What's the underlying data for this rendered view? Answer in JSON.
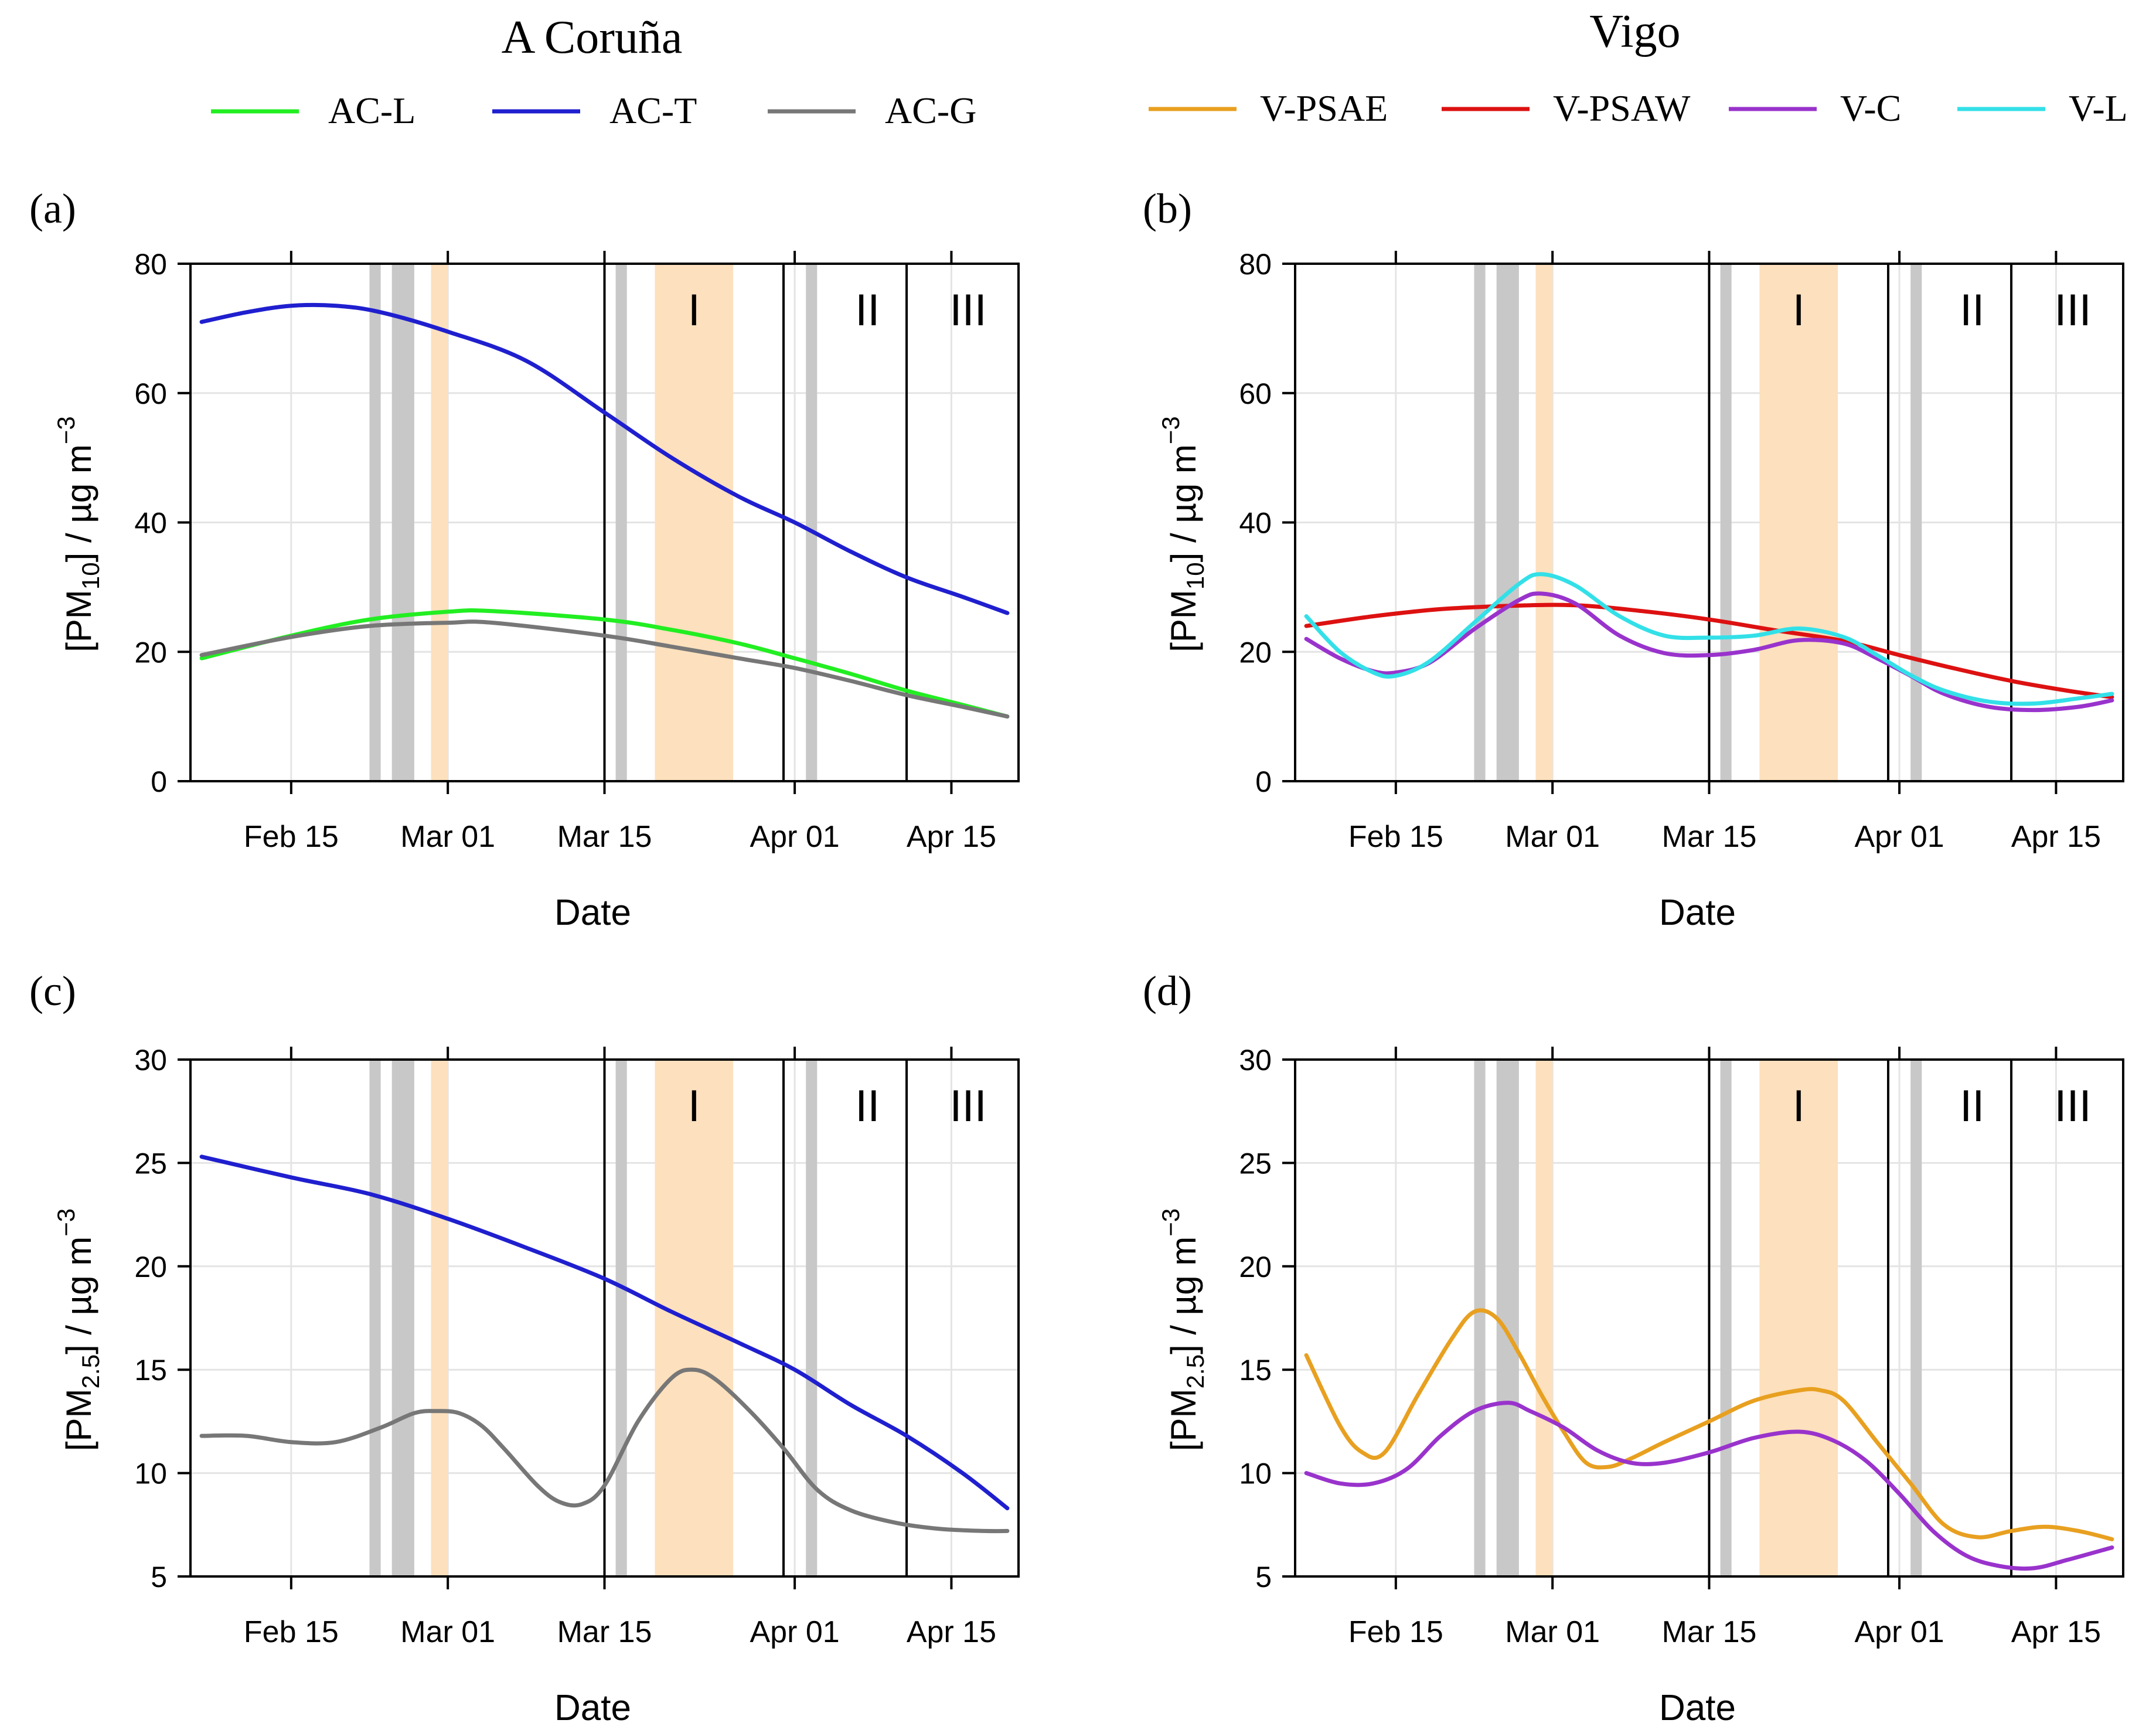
{
  "legend": {
    "left": {
      "title": "A Coruña",
      "entries": [
        {
          "label": "AC-L",
          "color": "#22ee22"
        },
        {
          "label": "AC-T",
          "color": "#1f1fcf"
        },
        {
          "label": "AC-G",
          "color": "#777777"
        }
      ]
    },
    "right": {
      "title": "Vigo",
      "entries": [
        {
          "label": "V-PSAE",
          "color": "#e8a020"
        },
        {
          "label": "V-PSAW",
          "color": "#dd1111"
        },
        {
          "label": "V-C",
          "color": "#9933cc"
        },
        {
          "label": "V-L",
          "color": "#33e0e8"
        }
      ]
    }
  },
  "chart_data": [
    {
      "type": "line",
      "panel": "(a)",
      "xlabel": "Date",
      "ylabel": "[PM10] / µg m-3",
      "ylabel_parts": {
        "main": "[PM",
        "sub": "10",
        "tail": "] / µg m",
        "sup": "−3"
      },
      "ylim": [
        0,
        80
      ],
      "yticks": [
        0,
        20,
        40,
        60,
        80
      ],
      "xlim_day": [
        37,
        111
      ],
      "xticks": [
        {
          "day": 46,
          "label": "Feb 15"
        },
        {
          "day": 60,
          "label": "Mar 01"
        },
        {
          "day": 74,
          "label": "Mar 15"
        },
        {
          "day": 91,
          "label": "Apr 01"
        },
        {
          "day": 105,
          "label": "Apr 15"
        }
      ],
      "x_unit": "day of year",
      "gray_bands": [
        [
          53,
          54
        ],
        [
          55,
          57
        ]
      ],
      "orange_bands": [
        [
          58.5,
          60
        ]
      ],
      "event_bands": {
        "gray": [
          [
            75,
            76
          ],
          [
            92,
            93
          ]
        ],
        "orange": [
          [
            78.5,
            85.5
          ]
        ]
      },
      "vlines": [
        74,
        90,
        101
      ],
      "periods": [
        {
          "label": "I",
          "day": 82
        },
        {
          "label": "II",
          "day": 97.5
        },
        {
          "label": "III",
          "day": 106.5
        }
      ],
      "series": [
        {
          "name": "AC-L",
          "color": "#22ee22",
          "x": [
            38,
            46,
            53,
            60,
            64,
            74,
            80,
            86,
            91,
            96,
            101,
            106,
            110
          ],
          "y": [
            19,
            22.5,
            25,
            26.2,
            26.3,
            25,
            23.4,
            21.3,
            19,
            16.6,
            14,
            11.8,
            10
          ]
        },
        {
          "name": "AC-T",
          "color": "#1f1fcf",
          "x": [
            38,
            42,
            46,
            50,
            54,
            60,
            67,
            74,
            80,
            86,
            91,
            96,
            101,
            106,
            110
          ],
          "y": [
            71,
            72.5,
            73.5,
            73.5,
            72.5,
            69.5,
            65,
            57,
            50,
            44,
            40,
            35.5,
            31.5,
            28.5,
            26
          ]
        },
        {
          "name": "AC-G",
          "color": "#777777",
          "x": [
            38,
            46,
            53,
            60,
            64,
            74,
            80,
            86,
            91,
            96,
            101,
            106,
            110
          ],
          "y": [
            19.5,
            22.3,
            24,
            24.5,
            24.5,
            22.5,
            20.8,
            19,
            17.5,
            15.5,
            13.3,
            11.5,
            10
          ]
        }
      ]
    },
    {
      "type": "line",
      "panel": "(b)",
      "xlabel": "Date",
      "ylabel": "[PM10] / µg m-3",
      "ylabel_parts": {
        "main": "[PM",
        "sub": "10",
        "tail": "] / µg m",
        "sup": "−3"
      },
      "ylim": [
        0,
        80
      ],
      "yticks": [
        0,
        20,
        40,
        60,
        80
      ],
      "xlim_day": [
        37,
        111
      ],
      "xticks": [
        {
          "day": 46,
          "label": "Feb 15"
        },
        {
          "day": 60,
          "label": "Mar 01"
        },
        {
          "day": 74,
          "label": "Mar 15"
        },
        {
          "day": 91,
          "label": "Apr 01"
        },
        {
          "day": 105,
          "label": "Apr 15"
        }
      ],
      "x_unit": "day of year",
      "gray_bands": [
        [
          53,
          54
        ],
        [
          55,
          57
        ]
      ],
      "orange_bands": [
        [
          58.5,
          60
        ]
      ],
      "event_bands": {
        "gray": [
          [
            75,
            76
          ],
          [
            92,
            93
          ]
        ],
        "orange": [
          [
            78.5,
            85.5
          ]
        ]
      },
      "vlines": [
        74,
        90,
        101
      ],
      "periods": [
        {
          "label": "I",
          "day": 82
        },
        {
          "label": "II",
          "day": 97.5
        },
        {
          "label": "III",
          "day": 106.5
        }
      ],
      "series": [
        {
          "name": "V-PSAW",
          "color": "#dd1111",
          "x": [
            38,
            44,
            50,
            56,
            62,
            68,
            74,
            80,
            86,
            91,
            96,
            101,
            106,
            110
          ],
          "y": [
            24,
            25.5,
            26.6,
            27.1,
            27.2,
            26.3,
            25,
            23.3,
            21.7,
            19.5,
            17.4,
            15.5,
            14,
            13
          ]
        },
        {
          "name": "V-C",
          "color": "#9933cc",
          "x": [
            38,
            41,
            44,
            46,
            49,
            53,
            57,
            59,
            62,
            66,
            70,
            74,
            78,
            82,
            86,
            89,
            92,
            95,
            99,
            103,
            107,
            110
          ],
          "y": [
            22,
            19,
            17,
            16.8,
            18.3,
            23.5,
            28,
            29,
            27.5,
            22.5,
            19.8,
            19.5,
            20.3,
            21.8,
            21.3,
            19,
            16.3,
            13.5,
            11.5,
            11,
            11.5,
            12.5
          ]
        },
        {
          "name": "V-L",
          "color": "#33e0e8",
          "x": [
            38,
            41,
            44,
            46,
            49,
            53,
            57,
            59,
            62,
            66,
            70,
            74,
            78,
            82,
            86,
            89,
            92,
            95,
            99,
            103,
            107,
            110
          ],
          "y": [
            25.5,
            20,
            16.8,
            16.3,
            18.5,
            24.5,
            30.5,
            32,
            30.3,
            25.5,
            22.5,
            22.2,
            22.5,
            23.6,
            22.3,
            19.5,
            16.4,
            14,
            12.3,
            12,
            12.8,
            13.5
          ]
        }
      ]
    },
    {
      "type": "line",
      "panel": "(c)",
      "xlabel": "Date",
      "ylabel": "[PM2.5] / µg m-3",
      "ylabel_parts": {
        "main": "[PM",
        "sub": "2.5",
        "tail": "] / µg m",
        "sup": "−3"
      },
      "ylim": [
        5,
        30
      ],
      "yticks": [
        5,
        10,
        15,
        20,
        25,
        30
      ],
      "xlim_day": [
        37,
        111
      ],
      "xticks": [
        {
          "day": 46,
          "label": "Feb 15"
        },
        {
          "day": 60,
          "label": "Mar 01"
        },
        {
          "day": 74,
          "label": "Mar 15"
        },
        {
          "day": 91,
          "label": "Apr 01"
        },
        {
          "day": 105,
          "label": "Apr 15"
        }
      ],
      "x_unit": "day of year",
      "gray_bands": [
        [
          53,
          54
        ],
        [
          55,
          57
        ]
      ],
      "orange_bands": [
        [
          58.5,
          60
        ]
      ],
      "event_bands": {
        "gray": [
          [
            75,
            76
          ],
          [
            92,
            93
          ]
        ],
        "orange": [
          [
            78.5,
            85.5
          ]
        ]
      },
      "vlines": [
        74,
        90,
        101
      ],
      "periods": [
        {
          "label": "I",
          "day": 82
        },
        {
          "label": "II",
          "day": 97.5
        },
        {
          "label": "III",
          "day": 106.5
        }
      ],
      "series": [
        {
          "name": "AC-T",
          "color": "#1f1fcf",
          "x": [
            38,
            46,
            53,
            60,
            67,
            74,
            80,
            86,
            91,
            96,
            101,
            106,
            110
          ],
          "y": [
            25.3,
            24.3,
            23.5,
            22.3,
            20.9,
            19.4,
            17.8,
            16.3,
            15,
            13.3,
            11.8,
            10,
            8.3
          ]
        },
        {
          "name": "AC-G",
          "color": "#777777",
          "x": [
            38,
            42,
            46,
            50,
            54,
            57,
            59,
            61,
            63,
            65,
            68,
            70,
            72,
            74,
            77,
            80,
            82,
            84,
            87,
            90,
            93,
            96,
            100,
            104,
            108,
            110
          ],
          "y": [
            11.8,
            11.8,
            11.5,
            11.5,
            12.2,
            12.9,
            13,
            12.9,
            12.3,
            11.2,
            9.4,
            8.6,
            8.5,
            9.4,
            12.5,
            14.6,
            15,
            14.5,
            13,
            11.2,
            9.2,
            8.2,
            7.6,
            7.3,
            7.2,
            7.2
          ]
        }
      ]
    },
    {
      "type": "line",
      "panel": "(d)",
      "xlabel": "Date",
      "ylabel": "[PM2.5] / µg m-3",
      "ylabel_parts": {
        "main": "[PM",
        "sub": "2.5",
        "tail": "] / µg m",
        "sup": "−3"
      },
      "ylim": [
        5,
        30
      ],
      "yticks": [
        5,
        10,
        15,
        20,
        25,
        30
      ],
      "xlim_day": [
        37,
        111
      ],
      "xticks": [
        {
          "day": 46,
          "label": "Feb 15"
        },
        {
          "day": 60,
          "label": "Mar 01"
        },
        {
          "day": 74,
          "label": "Mar 15"
        },
        {
          "day": 91,
          "label": "Apr 01"
        },
        {
          "day": 105,
          "label": "Apr 15"
        }
      ],
      "x_unit": "day of year",
      "gray_bands": [
        [
          53,
          54
        ],
        [
          55,
          57
        ]
      ],
      "orange_bands": [
        [
          58.5,
          60
        ]
      ],
      "event_bands": {
        "gray": [
          [
            75,
            76
          ],
          [
            92,
            93
          ]
        ],
        "orange": [
          [
            78.5,
            85.5
          ]
        ]
      },
      "vlines": [
        74,
        90,
        101
      ],
      "periods": [
        {
          "label": "I",
          "day": 82
        },
        {
          "label": "II",
          "day": 97.5
        },
        {
          "label": "III",
          "day": 106.5
        }
      ],
      "series": [
        {
          "name": "V-PSAE",
          "color": "#e8a020",
          "x": [
            38,
            41,
            43,
            45,
            48,
            51,
            53,
            55,
            57,
            59,
            61,
            63,
            65,
            67,
            70,
            74,
            78,
            82,
            84,
            86,
            89,
            92,
            95,
            98,
            101,
            104,
            107,
            110
          ],
          "y": [
            15.7,
            12.3,
            11,
            11,
            13.8,
            16.5,
            17.8,
            17.5,
            15.8,
            13.8,
            12,
            10.5,
            10.3,
            10.7,
            11.5,
            12.5,
            13.5,
            14,
            14,
            13.5,
            11.5,
            9.5,
            7.5,
            6.9,
            7.2,
            7.4,
            7.2,
            6.8
          ]
        },
        {
          "name": "V-C",
          "color": "#9933cc",
          "x": [
            38,
            41,
            44,
            47,
            50,
            53,
            56,
            58,
            61,
            64,
            67,
            70,
            74,
            78,
            82,
            85,
            88,
            91,
            94,
            97,
            100,
            103,
            106,
            110
          ],
          "y": [
            10,
            9.5,
            9.5,
            10.2,
            11.8,
            13,
            13.4,
            13,
            12.2,
            11.1,
            10.5,
            10.5,
            11,
            11.7,
            12,
            11.6,
            10.6,
            9,
            7.2,
            6,
            5.5,
            5.4,
            5.8,
            6.4
          ]
        }
      ]
    }
  ]
}
